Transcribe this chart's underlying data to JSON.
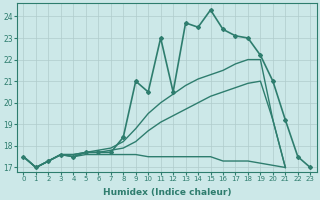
{
  "xlabel": "Humidex (Indice chaleur)",
  "bg_color": "#cce8e8",
  "grid_color": "#b0cccc",
  "line_color": "#2e7d6e",
  "xlim_min": -0.5,
  "xlim_max": 23.5,
  "ylim_min": 16.8,
  "ylim_max": 24.6,
  "yticks": [
    17,
    18,
    19,
    20,
    21,
    22,
    23,
    24
  ],
  "xticks": [
    0,
    1,
    2,
    3,
    4,
    5,
    6,
    7,
    8,
    9,
    10,
    11,
    12,
    13,
    14,
    15,
    16,
    17,
    18,
    19,
    20,
    21,
    22,
    23
  ],
  "series": [
    {
      "x": [
        0,
        1,
        2,
        3,
        4,
        5,
        6,
        7,
        8,
        9,
        10,
        11,
        12,
        13,
        14,
        15,
        16,
        17,
        18,
        19,
        20,
        21
      ],
      "y": [
        17.5,
        17.0,
        17.3,
        17.6,
        17.5,
        17.6,
        17.6,
        17.6,
        17.6,
        17.6,
        17.5,
        17.5,
        17.5,
        17.5,
        17.5,
        17.5,
        17.3,
        17.3,
        17.3,
        17.2,
        17.1,
        17.0
      ],
      "marker": false,
      "lw": 1.0
    },
    {
      "x": [
        0,
        1,
        2,
        3,
        4,
        5,
        6,
        7,
        8,
        9,
        10,
        11,
        12,
        13,
        14,
        15,
        16,
        17,
        18,
        19,
        20,
        21
      ],
      "y": [
        17.5,
        17.0,
        17.3,
        17.6,
        17.6,
        17.7,
        17.7,
        17.8,
        17.9,
        18.2,
        18.7,
        19.1,
        19.4,
        19.7,
        20.0,
        20.3,
        20.5,
        20.7,
        20.9,
        21.0,
        19.2,
        17.0
      ],
      "marker": false,
      "lw": 1.0
    },
    {
      "x": [
        0,
        1,
        2,
        3,
        4,
        5,
        6,
        7,
        8,
        9,
        10,
        11,
        12,
        13,
        14,
        15,
        16,
        17,
        18,
        19,
        20,
        21
      ],
      "y": [
        17.5,
        17.0,
        17.3,
        17.6,
        17.6,
        17.7,
        17.8,
        17.9,
        18.2,
        18.8,
        19.5,
        20.0,
        20.4,
        20.8,
        21.1,
        21.3,
        21.5,
        21.8,
        22.0,
        22.0,
        19.2,
        17.0
      ],
      "marker": false,
      "lw": 1.0
    },
    {
      "x": [
        0,
        1,
        2,
        3,
        4,
        5,
        6,
        7,
        8,
        9,
        10,
        11,
        12,
        13,
        14,
        15,
        16,
        17,
        18,
        19,
        20,
        21,
        22,
        23
      ],
      "y": [
        17.5,
        17.0,
        17.3,
        17.6,
        17.5,
        17.7,
        17.7,
        17.7,
        18.4,
        21.0,
        20.5,
        23.0,
        20.5,
        23.7,
        23.5,
        24.3,
        23.4,
        23.1,
        23.0,
        22.2,
        21.0,
        19.2,
        17.5,
        17.0
      ],
      "marker": true,
      "lw": 1.2
    }
  ]
}
